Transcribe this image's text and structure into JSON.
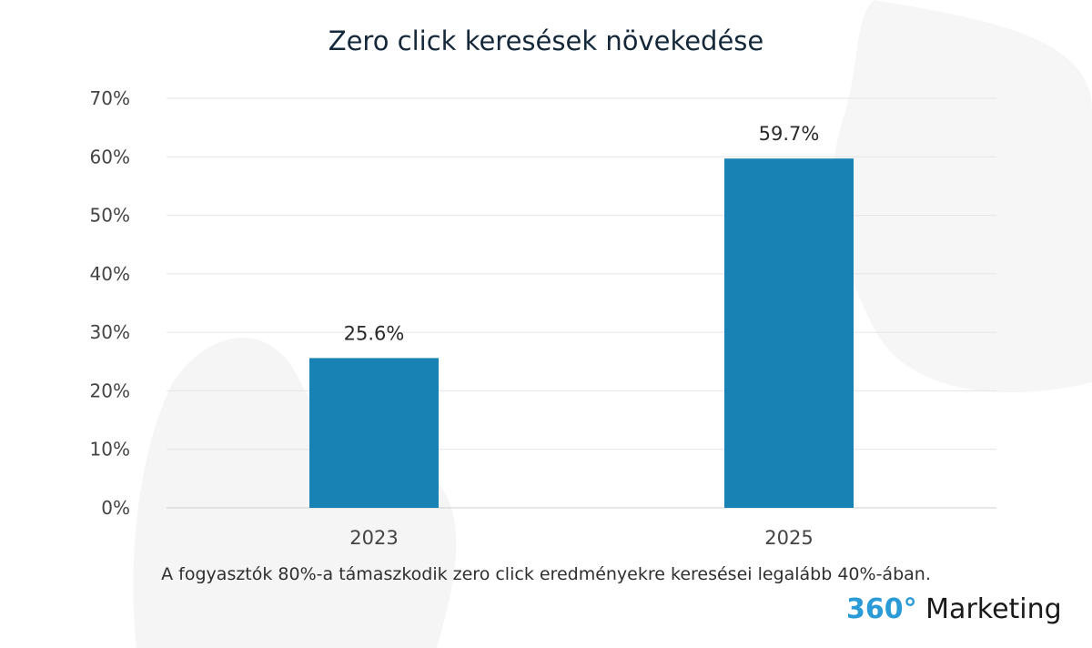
{
  "chart_data": {
    "type": "bar",
    "title": "Zero click keresések növekedése",
    "categories": [
      "2023",
      "2025"
    ],
    "values": [
      25.6,
      59.7
    ],
    "data_labels": [
      "25.6%",
      "59.7%"
    ],
    "ylim": [
      0,
      70
    ],
    "yticks": [
      "0%",
      "10%",
      "20%",
      "30%",
      "40%",
      "50%",
      "60%",
      "70%"
    ],
    "ytick_values": [
      0,
      10,
      20,
      30,
      40,
      50,
      60,
      70
    ],
    "grid": true,
    "bar_color": "#1782b3",
    "xlabel": "",
    "ylabel": ""
  },
  "caption": "A fogyasztók 80%-a támaszkodik zero click eredményekre keresései legalább 40%-ában.",
  "logo": {
    "part1": "360°",
    "part2": "Marketing",
    "color": "#2a9bd7"
  }
}
